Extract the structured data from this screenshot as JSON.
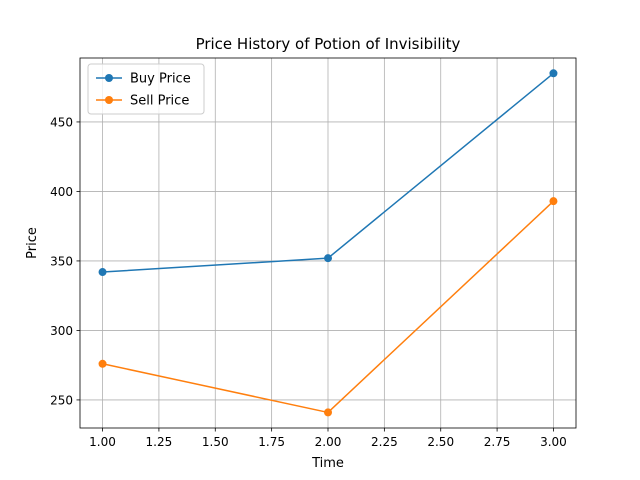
{
  "chart_data": {
    "type": "line",
    "title": "Price History of Potion of Invisibility",
    "xlabel": "Time",
    "ylabel": "Price",
    "x": [
      1,
      2,
      3
    ],
    "xlim": [
      0.9,
      3.1
    ],
    "ylim": [
      229.8,
      496.0
    ],
    "xticks": [
      1.0,
      1.25,
      1.5,
      1.75,
      2.0,
      2.25,
      2.5,
      2.75,
      3.0
    ],
    "xtick_labels": [
      "1.00",
      "1.25",
      "1.50",
      "1.75",
      "2.00",
      "2.25",
      "2.50",
      "2.75",
      "3.00"
    ],
    "yticks": [
      250,
      300,
      350,
      400,
      450
    ],
    "ytick_labels": [
      "250",
      "300",
      "350",
      "400",
      "450"
    ],
    "grid": true,
    "legend_position": "top-left",
    "series": [
      {
        "name": "Buy Price",
        "color": "#1f77b4",
        "marker": "circle",
        "values": [
          342,
          352,
          485
        ]
      },
      {
        "name": "Sell Price",
        "color": "#ff7f0e",
        "marker": "circle",
        "values": [
          276,
          241,
          393
        ]
      }
    ]
  }
}
